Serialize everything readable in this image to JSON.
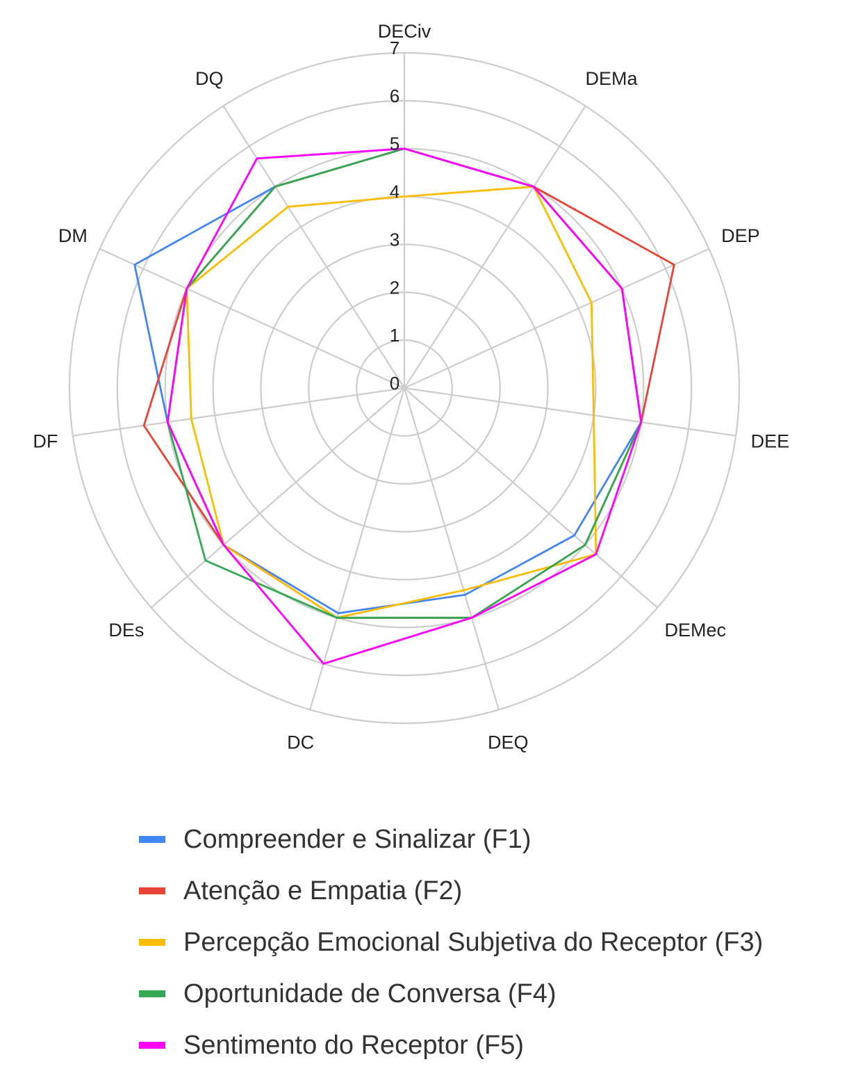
{
  "chart_data": {
    "type": "radar",
    "title": "",
    "axes": [
      "DECiv",
      "DEMa",
      "DEP",
      "DEE",
      "DEMec",
      "DEQ",
      "DC",
      "DEs",
      "DF",
      "DM",
      "DQ"
    ],
    "rlim": [
      0,
      7
    ],
    "ticks": [
      "0",
      "1",
      "2",
      "3",
      "4",
      "5",
      "6",
      "7"
    ],
    "grid": true,
    "legend_position": "bottom",
    "series": [
      {
        "name": "Compreender e Sinalizar (F1)",
        "color": "#4285F4",
        "values": [
          5,
          5,
          5,
          5,
          4.7,
          4.5,
          4.9,
          5,
          5,
          6.2,
          5
        ]
      },
      {
        "name": "Atenção e Empatia (F2)",
        "color": "#EA4335",
        "values": [
          5,
          5,
          6.2,
          5,
          5,
          5,
          5,
          5,
          5.5,
          5,
          5
        ]
      },
      {
        "name": "Percepção Emocional Subjetiva do Receptor (F3)",
        "color": "#FBBC04",
        "values": [
          4,
          5,
          4.3,
          4,
          5.3,
          4.4,
          5,
          5,
          4.5,
          5,
          4.5
        ]
      },
      {
        "name": "Oportunidade de Conversa (F4)",
        "color": "#34A853",
        "values": [
          5,
          5,
          5,
          5,
          5,
          5,
          5,
          5.5,
          5,
          5,
          5
        ]
      },
      {
        "name": "Sentimento do Receptor (F5)",
        "color": "#FF00FF",
        "values": [
          5,
          5,
          5,
          5,
          5.3,
          5,
          6,
          5,
          5,
          5,
          5.7
        ]
      }
    ]
  }
}
